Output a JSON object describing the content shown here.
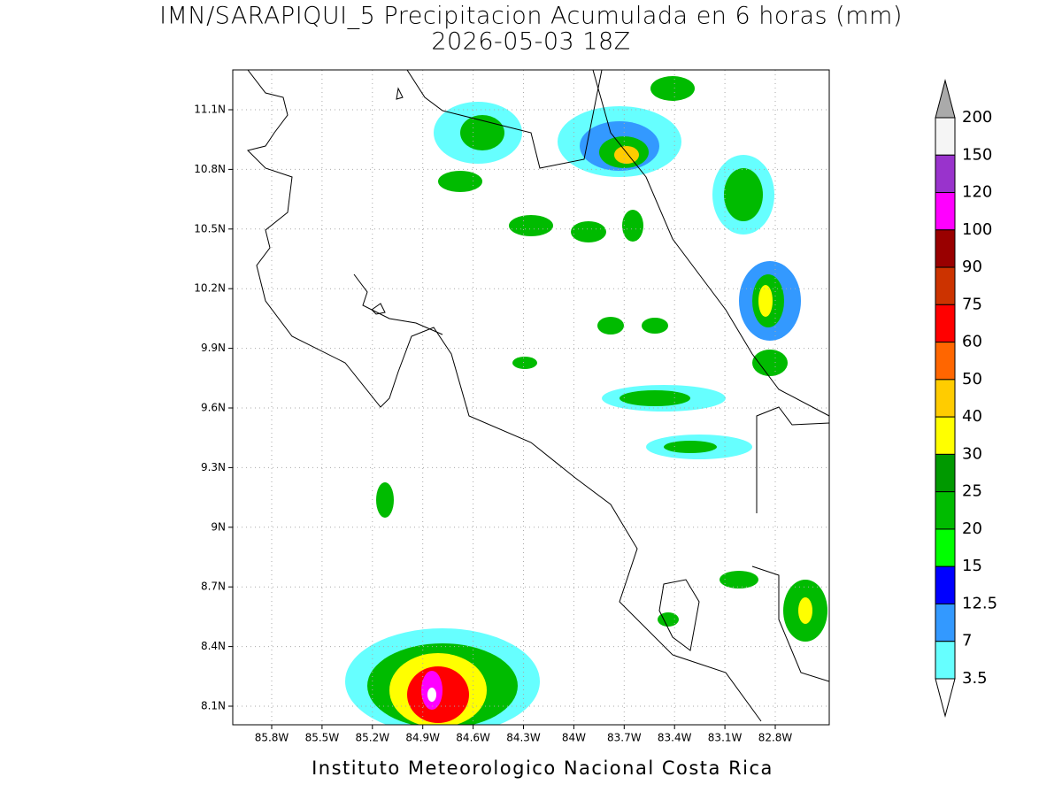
{
  "title": "IMN/SARAPIQUI_5 Precipitacion Acumulada en 6 horas (mm)",
  "subtitle": "2026-05-03 18Z",
  "map": {
    "x_labels": [
      "85.8W",
      "85.5W",
      "85.2W",
      "84.9W",
      "84.6W",
      "84.3W",
      "84W",
      "83.7W",
      "83.4W",
      "83.1W",
      "82.8W"
    ],
    "y_labels": [
      "11.1N",
      "10.8N",
      "10.5N",
      "10.2N",
      "9.9N",
      "9.6N",
      "9.3N",
      "9N",
      "8.7N",
      "8.4N",
      "8.1N"
    ]
  },
  "colorbar": {
    "labels": [
      "200",
      "150",
      "120",
      "100",
      "90",
      "75",
      "60",
      "50",
      "40",
      "30",
      "25",
      "20",
      "15",
      "12.5",
      "7",
      "3.5"
    ],
    "colors": [
      "#f5f5f5",
      "#9933cc",
      "#ff00ff",
      "#990000",
      "#cc3300",
      "#ff0000",
      "#ff6600",
      "#ffcc00",
      "#ffff00",
      "#009900",
      "#00bb00",
      "#00ff00",
      "#0000ff",
      "#3399ff",
      "#66ffff"
    ],
    "over_color": "#aaaaaa",
    "under_color": "#ffffff"
  },
  "footer": "Instituto Meteorologico Nacional Costa Rica"
}
